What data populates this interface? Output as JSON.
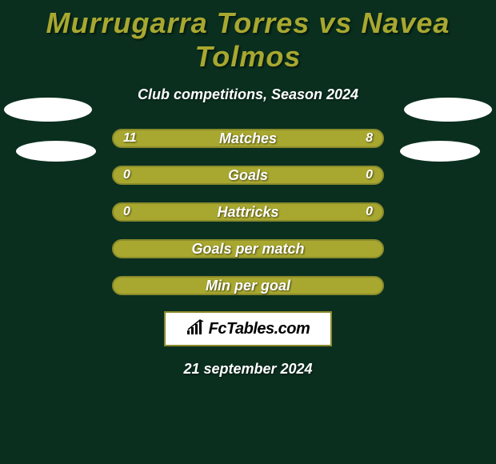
{
  "title_color": "#a8a830",
  "title": "Murrugarra Torres vs Navea Tolmos",
  "subtitle": "Club competitions, Season 2024",
  "date": "21 september 2024",
  "background_color": "#0a2f1f",
  "bar_bg_color": "#a8a830",
  "bar_border_color": "#8a8a2b",
  "bars": [
    {
      "label": "Matches",
      "left": "11",
      "right": "8",
      "left_pct": 58,
      "right_pct": 42,
      "show_values": true,
      "show_fill": true
    },
    {
      "label": "Goals",
      "left": "0",
      "right": "0",
      "left_pct": 0,
      "right_pct": 0,
      "show_values": true,
      "show_fill": false
    },
    {
      "label": "Hattricks",
      "left": "0",
      "right": "0",
      "left_pct": 0,
      "right_pct": 0,
      "show_values": true,
      "show_fill": false
    },
    {
      "label": "Goals per match",
      "left": "",
      "right": "",
      "left_pct": 0,
      "right_pct": 0,
      "show_values": false,
      "show_fill": false
    },
    {
      "label": "Min per goal",
      "left": "",
      "right": "",
      "left_pct": 0,
      "right_pct": 0,
      "show_values": false,
      "show_fill": false
    }
  ],
  "logo_text": "FcTables.com",
  "ellipse_color": "#ffffff"
}
